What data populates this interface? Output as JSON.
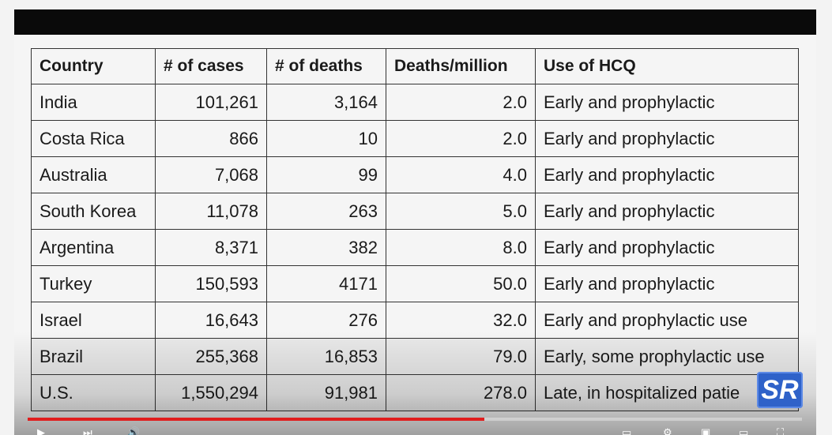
{
  "table": {
    "headers": [
      "Country",
      "# of cases",
      "# of deaths",
      "Deaths/million",
      "Use of HCQ"
    ],
    "rows": [
      [
        "India",
        "101,261",
        "3,164",
        "2.0",
        "Early and prophylactic"
      ],
      [
        "Costa Rica",
        "866",
        "10",
        "2.0",
        "Early and prophylactic"
      ],
      [
        "Australia",
        "7,068",
        "99",
        "4.0",
        "Early and prophylactic"
      ],
      [
        "South Korea",
        "11,078",
        "263",
        "5.0",
        "Early and prophylactic"
      ],
      [
        "Argentina",
        "8,371",
        "382",
        "8.0",
        "Early and prophylactic"
      ],
      [
        "Turkey",
        "150,593",
        "4171",
        "50.0",
        "Early and prophylactic"
      ],
      [
        "Israel",
        "16,643",
        "276",
        "32.0",
        "Early and prophylactic use"
      ],
      [
        "Brazil",
        "255,368",
        "16,853",
        "79.0",
        "Early, some prophylactic use"
      ],
      [
        "U.S.",
        "1,550,294",
        "91,981",
        "278.0",
        "Late, in hospitalized patie"
      ]
    ]
  },
  "logo": {
    "text": "SR",
    "color": "#2f62c9"
  },
  "player": {
    "progress_color": "#e01e1e",
    "progress_fraction": 0.59,
    "icons": [
      "play-icon",
      "next-icon",
      "volume-icon",
      "subtitles-icon",
      "settings-icon",
      "miniplayer-icon",
      "theater-icon",
      "fullscreen-icon"
    ]
  }
}
